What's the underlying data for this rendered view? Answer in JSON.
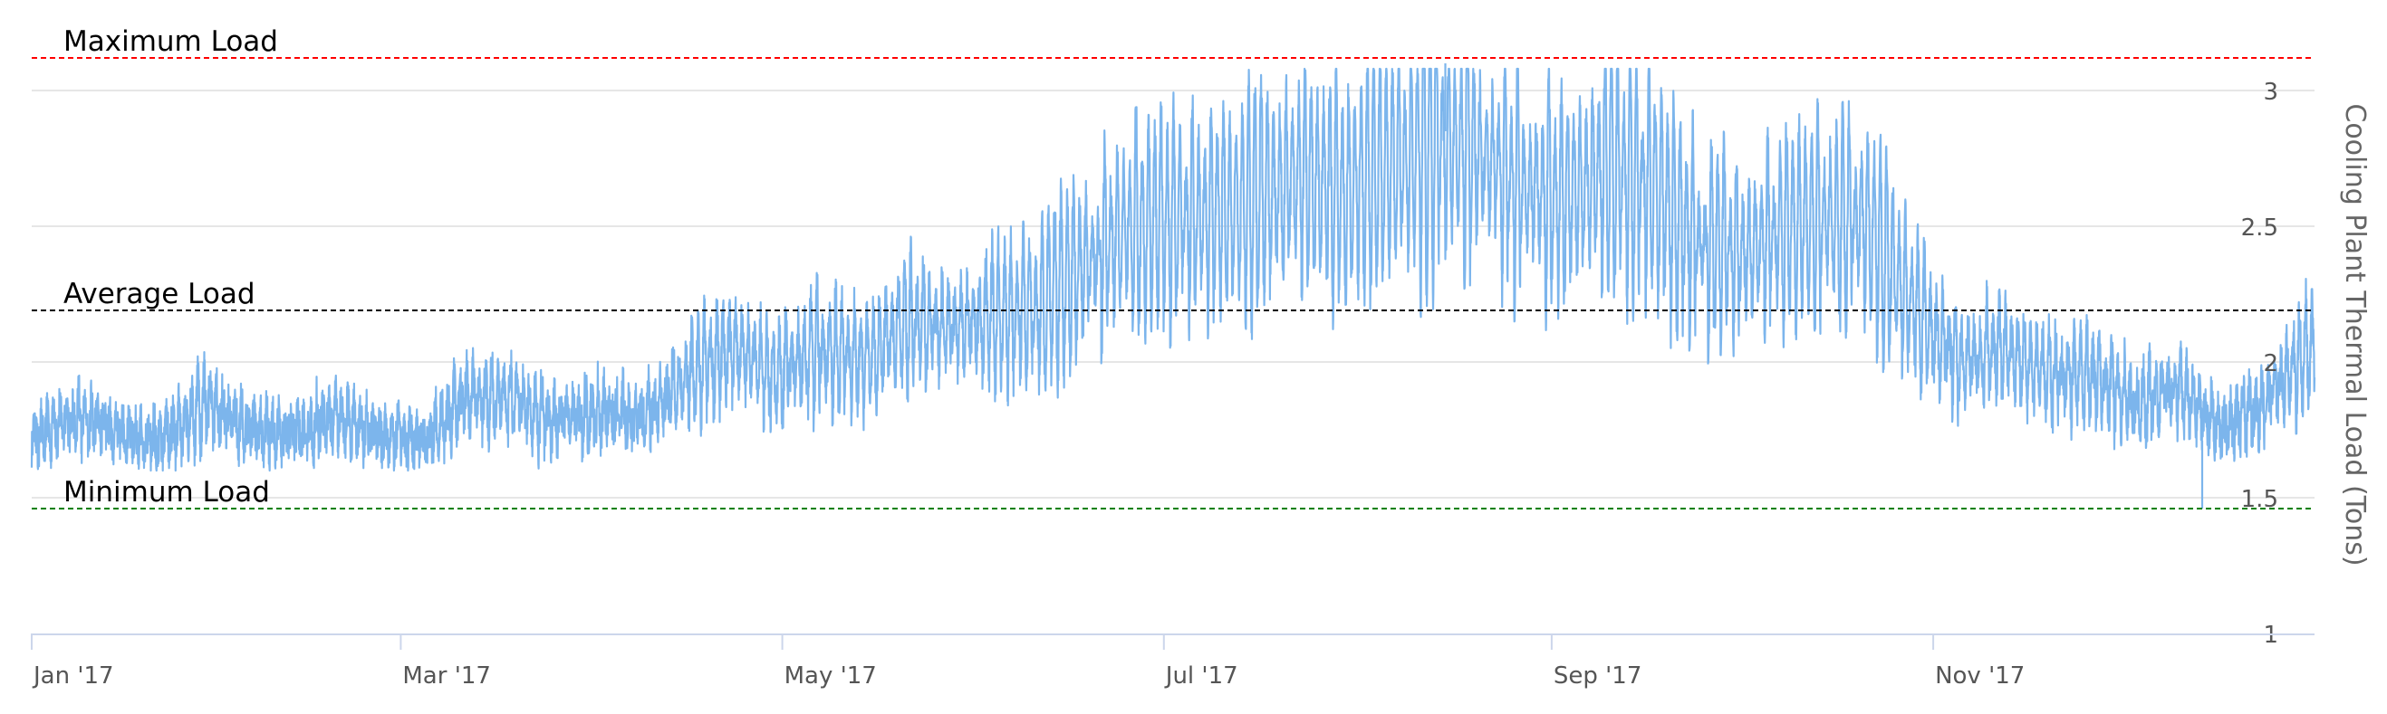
{
  "chart_data": {
    "type": "line",
    "x_axis": {
      "ticks": [
        "Jan '17",
        "Mar '17",
        "May '17",
        "Jul '17",
        "Sep '17",
        "Nov '17"
      ],
      "tick_dates": [
        "2017-01-01",
        "2017-03-01",
        "2017-05-01",
        "2017-07-01",
        "2017-09-01",
        "2017-11-01"
      ],
      "range": [
        "2017-01-01",
        "2017-12-31"
      ]
    },
    "y_axis": {
      "title": "Cooling Plant Thermal Load (Tons)",
      "position": "right",
      "ticks": [
        1,
        1.5,
        2,
        2.5,
        3
      ],
      "tick_labels": [
        "1",
        "1.5",
        "2",
        "2.5",
        "3"
      ],
      "range": [
        1,
        3.2
      ]
    },
    "grid": true,
    "legend": "none",
    "series": [
      {
        "color": "#7cb5ec",
        "resolution": "hourly",
        "values": [
          [
            "2017-01-01",
            1.72
          ],
          [
            "2017-01-08",
            1.8
          ],
          [
            "2017-01-15",
            1.74
          ],
          [
            "2017-01-22",
            1.71
          ],
          [
            "2017-01-29",
            1.85
          ],
          [
            "2017-02-05",
            1.75
          ],
          [
            "2017-02-12",
            1.74
          ],
          [
            "2017-02-19",
            1.8
          ],
          [
            "2017-02-26",
            1.73
          ],
          [
            "2017-03-05",
            1.72
          ],
          [
            "2017-03-12",
            1.88
          ],
          [
            "2017-03-19",
            1.86
          ],
          [
            "2017-03-26",
            1.78
          ],
          [
            "2017-04-02",
            1.82
          ],
          [
            "2017-04-09",
            1.79
          ],
          [
            "2017-04-16",
            1.95
          ],
          [
            "2017-04-23",
            2.05
          ],
          [
            "2017-04-30",
            1.95
          ],
          [
            "2017-05-07",
            2.05
          ],
          [
            "2017-05-14",
            2.0
          ],
          [
            "2017-05-21",
            2.15
          ],
          [
            "2017-05-28",
            2.12
          ],
          [
            "2017-06-04",
            2.18
          ],
          [
            "2017-06-11",
            2.2
          ],
          [
            "2017-06-18",
            2.35
          ],
          [
            "2017-06-25",
            2.5
          ],
          [
            "2017-07-02",
            2.52
          ],
          [
            "2017-07-09",
            2.55
          ],
          [
            "2017-07-16",
            2.6
          ],
          [
            "2017-07-23",
            2.68
          ],
          [
            "2017-07-30",
            2.62
          ],
          [
            "2017-08-06",
            2.72
          ],
          [
            "2017-08-13",
            2.8
          ],
          [
            "2017-08-20",
            2.78
          ],
          [
            "2017-08-27",
            2.65
          ],
          [
            "2017-09-03",
            2.6
          ],
          [
            "2017-09-10",
            2.72
          ],
          [
            "2017-09-17",
            2.65
          ],
          [
            "2017-09-24",
            2.45
          ],
          [
            "2017-10-01",
            2.4
          ],
          [
            "2017-10-08",
            2.48
          ],
          [
            "2017-10-15",
            2.55
          ],
          [
            "2017-10-22",
            2.5
          ],
          [
            "2017-10-29",
            2.2
          ],
          [
            "2017-11-05",
            2.0
          ],
          [
            "2017-11-12",
            2.05
          ],
          [
            "2017-11-19",
            1.95
          ],
          [
            "2017-11-26",
            1.95
          ],
          [
            "2017-12-03",
            1.85
          ],
          [
            "2017-12-10",
            1.9
          ],
          [
            "2017-12-17",
            1.75
          ],
          [
            "2017-12-24",
            1.85
          ],
          [
            "2017-12-31",
            2.05
          ]
        ],
        "min": [
          [
            "2017-12-14",
            1.46
          ]
        ],
        "max": [
          [
            "2017-08-15",
            3.1
          ]
        ]
      }
    ],
    "plot_lines": [
      {
        "label": "Maximum Load",
        "value": 3.12,
        "color": "#ff0000",
        "style": "dashed"
      },
      {
        "label": "Average Load",
        "value": 2.19,
        "color": "#000000",
        "style": "dashed"
      },
      {
        "label": "Minimum Load",
        "value": 1.46,
        "color": "#008000",
        "style": "dashed"
      }
    ]
  }
}
